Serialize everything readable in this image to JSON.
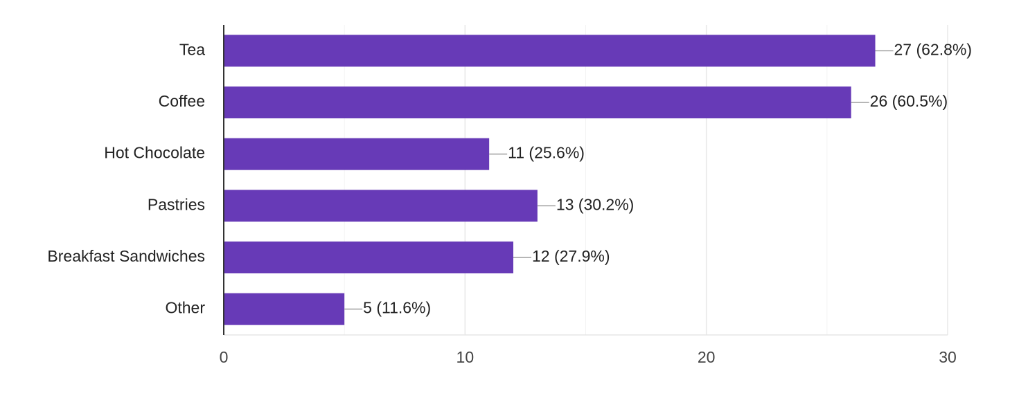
{
  "chart_data": {
    "type": "bar",
    "orientation": "horizontal",
    "categories": [
      "Tea",
      "Coffee",
      "Hot Chocolate",
      "Pastries",
      "Breakfast Sandwiches",
      "Other"
    ],
    "values": [
      27,
      26,
      11,
      13,
      12,
      5
    ],
    "data_labels": [
      "27 (62.8%)",
      "26 (60.5%)",
      "11 (25.6%)",
      "13 (30.2%)",
      "12 (27.9%)",
      "5 (11.6%)"
    ],
    "x_ticks": [
      0,
      10,
      20,
      30
    ],
    "x_tick_labels": [
      "0",
      "10",
      "20",
      "30"
    ],
    "xlim": [
      0,
      30
    ],
    "minor_grid_step": 5,
    "grid": true,
    "bar_color": "#673ab7",
    "title": "",
    "xlabel": "",
    "ylabel": ""
  }
}
